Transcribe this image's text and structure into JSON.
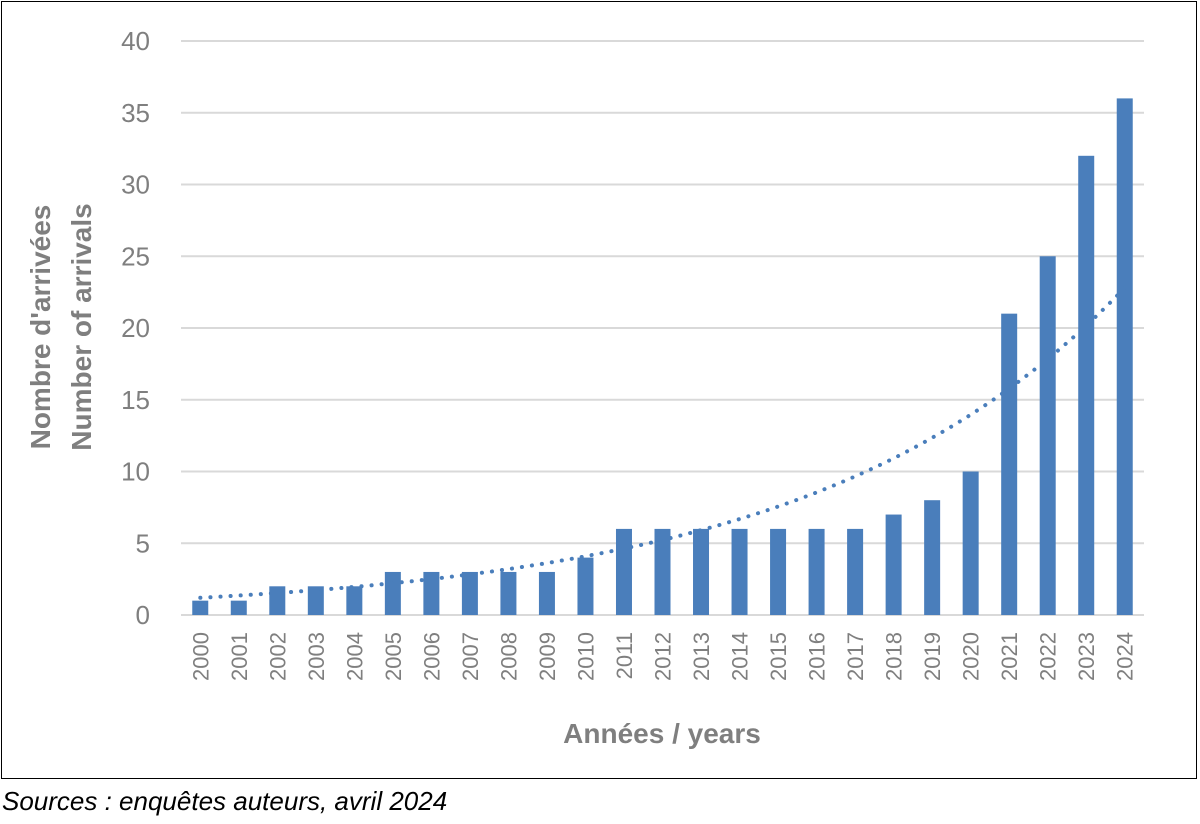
{
  "chart_data": {
    "type": "bar",
    "title": "",
    "xlabel": "Années / years",
    "ylabel_lines": [
      "Nombre d'arrivées",
      "Number of arrivals"
    ],
    "categories": [
      "2000",
      "2001",
      "2002",
      "2003",
      "2004",
      "2005",
      "2006",
      "2007",
      "2008",
      "2009",
      "2010",
      "2011",
      "2012",
      "2013",
      "2014",
      "2015",
      "2016",
      "2017",
      "2018",
      "2019",
      "2020",
      "2021",
      "2022",
      "2023",
      "2024"
    ],
    "values": [
      1,
      1,
      2,
      2,
      2,
      3,
      3,
      3,
      3,
      3,
      4,
      6,
      6,
      6,
      6,
      6,
      6,
      6,
      7,
      8,
      10,
      21,
      25,
      32,
      36
    ],
    "ylim": [
      0,
      40
    ],
    "yticks": [
      0,
      5,
      10,
      15,
      20,
      25,
      30,
      35,
      40
    ],
    "grid": true,
    "legend": "none",
    "trendline": {
      "type": "exponential",
      "style": "dotted",
      "start_value": 1.2,
      "end_value": 22.8
    },
    "colors": {
      "bar": "#4a7ebb",
      "trend": "#4a7ebb",
      "grid": "#d9d9d9",
      "text": "#7f7f7f"
    }
  },
  "source_note": "Sources : enquêtes auteurs, avril 2024"
}
